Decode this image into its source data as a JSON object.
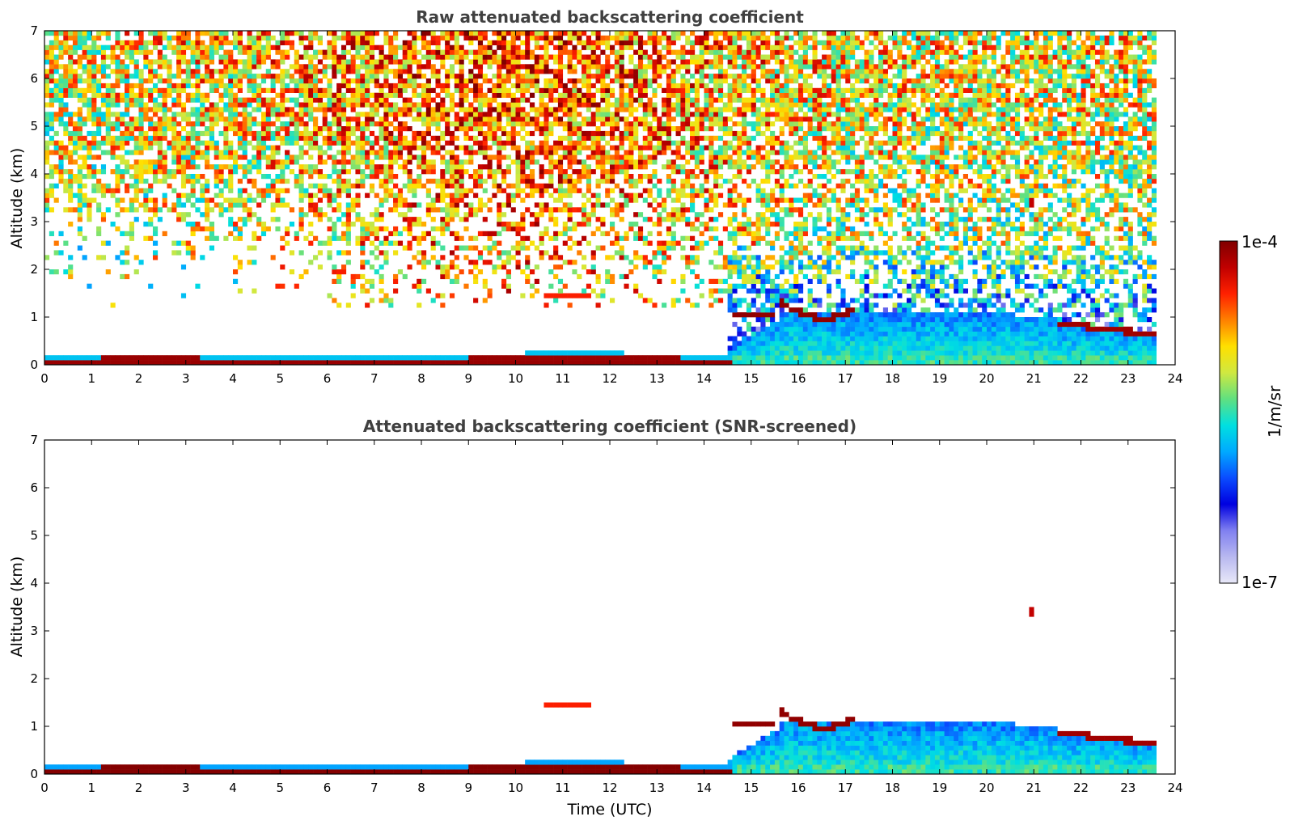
{
  "chart_data": [
    {
      "type": "heatmap",
      "title": "Raw attenuated backscattering coefficient",
      "xlabel": "",
      "ylabel": "Altitude (km)",
      "xlim": [
        0,
        24
      ],
      "ylim": [
        0,
        7
      ],
      "xticks": [
        "0",
        "1",
        "2",
        "3",
        "4",
        "5",
        "6",
        "7",
        "8",
        "9",
        "10",
        "11",
        "12",
        "13",
        "14",
        "15",
        "16",
        "17",
        "18",
        "19",
        "20",
        "21",
        "22",
        "23",
        "24"
      ],
      "yticks": [
        "0",
        "1",
        "2",
        "3",
        "4",
        "5",
        "6",
        "7"
      ],
      "grid": false,
      "screened": false,
      "data_extent_hours": [
        0,
        23.65
      ],
      "layers": [
        {
          "name": "near-surface aerosol layer",
          "x": [
            0,
            14.5
          ],
          "y": [
            0.05,
            0.2
          ],
          "level": "high"
        },
        {
          "name": "cloud base layer",
          "x": [
            14.6,
            15.5
          ],
          "y": [
            1.0,
            1.1
          ],
          "level": "high"
        },
        {
          "name": "cloud top edge",
          "x": [
            15.6,
            17.2
          ],
          "y": [
            1.0,
            1.35
          ],
          "level": "high"
        },
        {
          "name": "boundary layer",
          "x": [
            14.5,
            23.65
          ],
          "y": [
            0,
            1.2
          ],
          "level": "medium"
        },
        {
          "name": "residual layer top",
          "x": [
            21.5,
            23.65
          ],
          "y": [
            0.65,
            0.9
          ],
          "level": "high"
        },
        {
          "name": "upper noise",
          "x": [
            0,
            23.65
          ],
          "y": [
            1.5,
            7
          ],
          "level": "noise"
        }
      ]
    },
    {
      "type": "heatmap",
      "title": "Attenuated backscattering coefficient (SNR-screened)",
      "xlabel": "Time (UTC)",
      "ylabel": "Altitude (km)",
      "xlim": [
        0,
        24
      ],
      "ylim": [
        0,
        7
      ],
      "xticks": [
        "0",
        "1",
        "2",
        "3",
        "4",
        "5",
        "6",
        "7",
        "8",
        "9",
        "10",
        "11",
        "12",
        "13",
        "14",
        "15",
        "16",
        "17",
        "18",
        "19",
        "20",
        "21",
        "22",
        "23",
        "24"
      ],
      "yticks": [
        "0",
        "1",
        "2",
        "3",
        "4",
        "5",
        "6",
        "7"
      ],
      "grid": false,
      "screened": true,
      "data_extent_hours": [
        0,
        23.65
      ]
    }
  ],
  "colorbar": {
    "label": "1/m/sr",
    "max_label": "1e-4",
    "min_label": "1e-7",
    "scale": "log",
    "colormap": [
      "#e8e8f8",
      "#b8b8f0",
      "#8080f0",
      "#0000e0",
      "#0a4cff",
      "#00aaff",
      "#00e0e0",
      "#60e080",
      "#d0e840",
      "#ffe000",
      "#ff8000",
      "#ff2000",
      "#c00000",
      "#800000"
    ]
  }
}
